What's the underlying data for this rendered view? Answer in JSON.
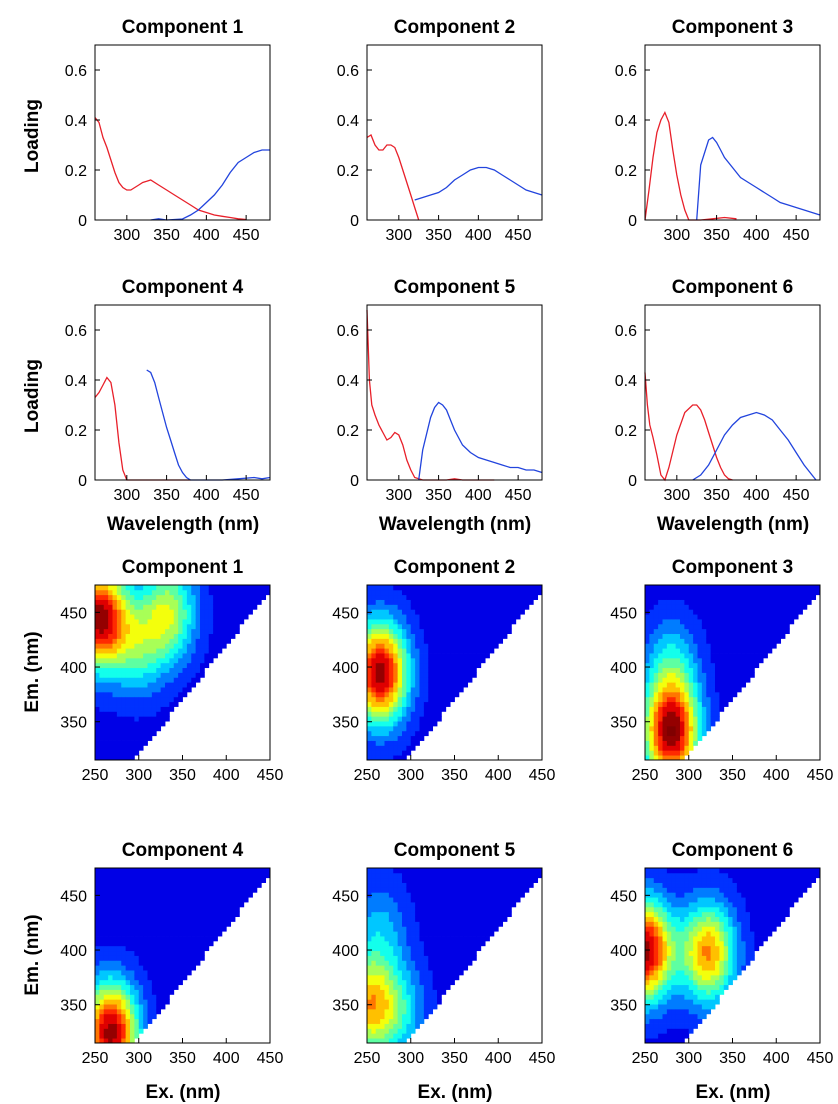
{
  "colors": {
    "excitation": "#e8202a",
    "emission": "#2244dd",
    "background": "#ffffff"
  },
  "labels": {
    "loading": "Loading",
    "wavelength": "Wavelength (nm)",
    "em": "Em. (nm)",
    "ex": "Ex. (nm)"
  },
  "chart_data": [
    {
      "type": "line",
      "title": "Component 1",
      "xlim": [
        260,
        480
      ],
      "ylim": [
        0,
        0.7
      ],
      "xticks": [
        "300",
        "350",
        "400",
        "450"
      ],
      "yticks": [
        "0",
        "0.2",
        "0.4",
        "0.6"
      ],
      "series": [
        {
          "role": "excitation",
          "x": [
            260,
            265,
            270,
            275,
            280,
            285,
            290,
            295,
            300,
            305,
            310,
            315,
            320,
            325,
            330,
            340,
            350,
            360,
            370,
            380,
            390,
            400,
            410,
            420,
            430,
            440,
            450
          ],
          "y": [
            0.41,
            0.39,
            0.33,
            0.29,
            0.24,
            0.19,
            0.15,
            0.13,
            0.12,
            0.12,
            0.13,
            0.14,
            0.15,
            0.155,
            0.16,
            0.14,
            0.12,
            0.1,
            0.08,
            0.06,
            0.04,
            0.03,
            0.02,
            0.015,
            0.01,
            0.005,
            0.002
          ]
        },
        {
          "role": "emission",
          "x": [
            330,
            340,
            350,
            360,
            370,
            380,
            390,
            400,
            410,
            420,
            430,
            440,
            450,
            460,
            470,
            480
          ],
          "y": [
            0.0,
            0.005,
            0.0,
            0.002,
            0.004,
            0.02,
            0.04,
            0.07,
            0.1,
            0.14,
            0.19,
            0.23,
            0.25,
            0.27,
            0.28,
            0.28
          ]
        }
      ]
    },
    {
      "type": "line",
      "title": "Component 2",
      "xlim": [
        260,
        480
      ],
      "ylim": [
        0,
        0.7
      ],
      "xticks": [
        "300",
        "350",
        "400",
        "450"
      ],
      "yticks": [
        "0",
        "0.2",
        "0.4",
        "0.6"
      ],
      "series": [
        {
          "role": "excitation",
          "x": [
            260,
            265,
            270,
            275,
            280,
            285,
            290,
            295,
            300,
            305,
            310,
            315,
            320,
            325
          ],
          "y": [
            0.33,
            0.34,
            0.3,
            0.28,
            0.28,
            0.3,
            0.3,
            0.29,
            0.25,
            0.2,
            0.15,
            0.1,
            0.05,
            0.0
          ]
        },
        {
          "role": "emission",
          "x": [
            320,
            330,
            340,
            350,
            360,
            370,
            380,
            390,
            400,
            410,
            420,
            430,
            440,
            450,
            460,
            470,
            480
          ],
          "y": [
            0.08,
            0.09,
            0.1,
            0.11,
            0.13,
            0.16,
            0.18,
            0.2,
            0.21,
            0.21,
            0.2,
            0.18,
            0.16,
            0.14,
            0.12,
            0.11,
            0.1
          ]
        }
      ]
    },
    {
      "type": "line",
      "title": "Component 3",
      "xlim": [
        260,
        480
      ],
      "ylim": [
        0,
        0.7
      ],
      "xticks": [
        "300",
        "350",
        "400",
        "450"
      ],
      "yticks": [
        "0",
        "0.2",
        "0.4",
        "0.6"
      ],
      "series": [
        {
          "role": "excitation",
          "x": [
            260,
            265,
            270,
            275,
            280,
            285,
            290,
            295,
            300,
            305,
            310,
            315,
            330,
            345,
            360,
            375
          ],
          "y": [
            0.0,
            0.12,
            0.25,
            0.35,
            0.4,
            0.43,
            0.39,
            0.28,
            0.18,
            0.1,
            0.04,
            0.0,
            0.0,
            0.005,
            0.01,
            0.005
          ]
        },
        {
          "role": "emission",
          "x": [
            325,
            330,
            340,
            345,
            350,
            355,
            360,
            370,
            380,
            390,
            400,
            410,
            420,
            430,
            440,
            450,
            460,
            470,
            480
          ],
          "y": [
            0.0,
            0.22,
            0.32,
            0.33,
            0.31,
            0.28,
            0.25,
            0.21,
            0.17,
            0.15,
            0.13,
            0.11,
            0.09,
            0.07,
            0.06,
            0.05,
            0.04,
            0.03,
            0.02
          ]
        }
      ]
    },
    {
      "type": "line",
      "title": "Component 4",
      "xlim": [
        260,
        480
      ],
      "ylim": [
        0,
        0.7
      ],
      "xticks": [
        "300",
        "350",
        "400",
        "450"
      ],
      "yticks": [
        "0",
        "0.2",
        "0.4",
        "0.6"
      ],
      "series": [
        {
          "role": "excitation",
          "x": [
            260,
            265,
            270,
            275,
            280,
            285,
            290,
            295,
            300,
            305,
            320,
            340,
            360,
            380
          ],
          "y": [
            0.33,
            0.35,
            0.38,
            0.41,
            0.39,
            0.3,
            0.15,
            0.04,
            0.0,
            0.0,
            0.0,
            0.0,
            0.0,
            0.0
          ]
        },
        {
          "role": "emission",
          "x": [
            325,
            330,
            335,
            340,
            345,
            350,
            355,
            360,
            365,
            370,
            375,
            380,
            390,
            400,
            420,
            440,
            460,
            470,
            480
          ],
          "y": [
            0.44,
            0.43,
            0.39,
            0.33,
            0.27,
            0.21,
            0.16,
            0.11,
            0.06,
            0.03,
            0.01,
            0.0,
            0.0,
            0.0,
            0.0,
            0.005,
            0.01,
            0.005,
            0.01
          ]
        }
      ]
    },
    {
      "type": "line",
      "title": "Component 5",
      "xlim": [
        260,
        480
      ],
      "ylim": [
        0,
        0.7
      ],
      "xticks": [
        "300",
        "350",
        "400",
        "450"
      ],
      "yticks": [
        "0",
        "0.2",
        "0.4",
        "0.6"
      ],
      "series": [
        {
          "role": "excitation",
          "x": [
            260,
            263,
            266,
            270,
            275,
            280,
            285,
            290,
            295,
            300,
            305,
            310,
            315,
            320,
            330,
            340,
            350,
            360,
            370,
            380,
            400,
            420
          ],
          "y": [
            0.68,
            0.4,
            0.3,
            0.26,
            0.22,
            0.19,
            0.16,
            0.17,
            0.19,
            0.18,
            0.14,
            0.08,
            0.04,
            0.01,
            0.0,
            0.0,
            0.0,
            0.0,
            0.005,
            0.0,
            0.0,
            0.0
          ]
        },
        {
          "role": "emission",
          "x": [
            325,
            330,
            340,
            345,
            350,
            355,
            360,
            365,
            370,
            380,
            390,
            400,
            410,
            420,
            430,
            440,
            450,
            460,
            470,
            480
          ],
          "y": [
            0.0,
            0.12,
            0.25,
            0.29,
            0.31,
            0.3,
            0.28,
            0.24,
            0.2,
            0.14,
            0.11,
            0.09,
            0.08,
            0.07,
            0.06,
            0.05,
            0.05,
            0.04,
            0.04,
            0.03
          ]
        }
      ]
    },
    {
      "type": "line",
      "title": "Component 6",
      "xlim": [
        260,
        480
      ],
      "ylim": [
        0,
        0.7
      ],
      "xticks": [
        "300",
        "350",
        "400",
        "450"
      ],
      "yticks": [
        "0",
        "0.2",
        "0.4",
        "0.6"
      ],
      "series": [
        {
          "role": "excitation",
          "x": [
            260,
            263,
            266,
            270,
            275,
            280,
            285,
            290,
            300,
            310,
            320,
            325,
            330,
            335,
            340,
            345,
            350,
            355,
            360,
            365,
            370
          ],
          "y": [
            0.43,
            0.3,
            0.22,
            0.17,
            0.1,
            0.02,
            0.0,
            0.05,
            0.18,
            0.27,
            0.3,
            0.3,
            0.28,
            0.24,
            0.19,
            0.14,
            0.09,
            0.05,
            0.02,
            0.005,
            0.0
          ]
        },
        {
          "role": "emission",
          "x": [
            320,
            330,
            340,
            350,
            360,
            370,
            380,
            390,
            400,
            410,
            420,
            430,
            440,
            450,
            460,
            470,
            475
          ],
          "y": [
            0.0,
            0.02,
            0.06,
            0.12,
            0.18,
            0.22,
            0.25,
            0.26,
            0.27,
            0.26,
            0.24,
            0.2,
            0.16,
            0.11,
            0.06,
            0.02,
            0.0
          ]
        }
      ]
    },
    {
      "type": "heatmap",
      "title": "Component 1",
      "xlim": [
        250,
        450
      ],
      "ylim": [
        315,
        475
      ],
      "xticks": [
        "250",
        "300",
        "350",
        "400",
        "450"
      ],
      "yticks": [
        "350",
        "400",
        "450"
      ],
      "peaks": [
        {
          "ex": 255,
          "em": 445,
          "intensity": 1.0
        },
        {
          "ex": 335,
          "em": 450,
          "intensity": 0.5
        },
        {
          "ex": 300,
          "em": 420,
          "intensity": 0.35
        }
      ]
    },
    {
      "type": "heatmap",
      "title": "Component 2",
      "xlim": [
        250,
        450
      ],
      "ylim": [
        315,
        475
      ],
      "xticks": [
        "250",
        "300",
        "350",
        "400",
        "450"
      ],
      "yticks": [
        "350",
        "400",
        "450"
      ],
      "peaks": [
        {
          "ex": 265,
          "em": 395,
          "intensity": 1.0
        }
      ]
    },
    {
      "type": "heatmap",
      "title": "Component 3",
      "xlim": [
        250,
        450
      ],
      "ylim": [
        315,
        475
      ],
      "xticks": [
        "250",
        "300",
        "350",
        "400",
        "450"
      ],
      "yticks": [
        "350",
        "400",
        "450"
      ],
      "peaks": [
        {
          "ex": 280,
          "em": 340,
          "intensity": 1.0
        },
        {
          "ex": 280,
          "em": 400,
          "intensity": 0.3
        }
      ]
    },
    {
      "type": "heatmap",
      "title": "Component 4",
      "xlim": [
        250,
        450
      ],
      "ylim": [
        315,
        475
      ],
      "xticks": [
        "250",
        "300",
        "350",
        "400",
        "450"
      ],
      "yticks": [
        "350",
        "400",
        "450"
      ],
      "peaks": [
        {
          "ex": 268,
          "em": 325,
          "intensity": 1.0
        }
      ]
    },
    {
      "type": "heatmap",
      "title": "Component 5",
      "xlim": [
        250,
        450
      ],
      "ylim": [
        315,
        475
      ],
      "xticks": [
        "250",
        "300",
        "350",
        "400",
        "450"
      ],
      "yticks": [
        "350",
        "400",
        "450"
      ],
      "peaks": [
        {
          "ex": 250,
          "em": 350,
          "intensity": 0.6
        },
        {
          "ex": 285,
          "em": 345,
          "intensity": 0.3
        },
        {
          "ex": 265,
          "em": 420,
          "intensity": 0.22
        }
      ]
    },
    {
      "type": "heatmap",
      "title": "Component 6",
      "xlim": [
        250,
        450
      ],
      "ylim": [
        315,
        475
      ],
      "xticks": [
        "250",
        "300",
        "350",
        "400",
        "450"
      ],
      "yticks": [
        "350",
        "400",
        "450"
      ],
      "peaks": [
        {
          "ex": 250,
          "em": 400,
          "intensity": 1.0
        },
        {
          "ex": 322,
          "em": 398,
          "intensity": 0.72
        }
      ]
    }
  ]
}
